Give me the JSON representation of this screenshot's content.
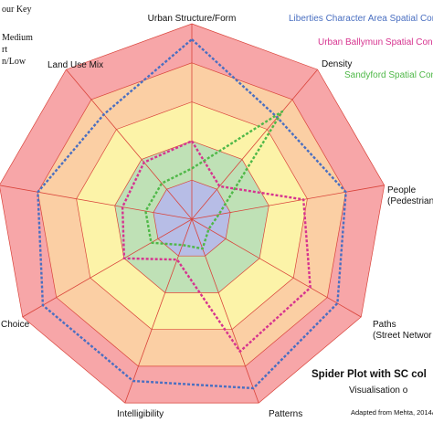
{
  "chart_data": {
    "type": "radar",
    "title": "Spider Plot with SC col",
    "subtitle": "Visualisation o",
    "source_note": "Adapted from  Mehta, 2014&",
    "colour_key": {
      "title": "our Key",
      "lines": [
        "Medium",
        "rt",
        "n/Low"
      ]
    },
    "axes": [
      "Urban Structure/Form",
      "Density",
      "People (Pedestrian",
      "Paths (Street Networ",
      "Patterns",
      "Intelligibility",
      "Choice",
      "",
      "Land Use Mix"
    ],
    "axis_label_lines": [
      [
        "Urban Structure/Form"
      ],
      [
        "Density"
      ],
      [
        "People",
        "(Pedestrian"
      ],
      [
        "Paths",
        "(Street Networ"
      ],
      [
        "Patterns"
      ],
      [
        "Intelligibility"
      ],
      [
        "Choice"
      ],
      [
        ""
      ],
      [
        "Land Use Mix"
      ]
    ],
    "scale": {
      "min": 0,
      "max": 5
    },
    "bands": [
      {
        "level": 5,
        "color": "#f7a6a8"
      },
      {
        "level": 4,
        "color": "#fbcfa4"
      },
      {
        "level": 3,
        "color": "#fcf3a8"
      },
      {
        "level": 2,
        "color": "#bfe1b6"
      },
      {
        "level": 1,
        "color": "#b7bde6"
      }
    ],
    "series": [
      {
        "name": "Liberties Character Area Spatial Com",
        "color": "#4a6fc1",
        "values": [
          4.6,
          3.4,
          4.0,
          4.3,
          4.6,
          4.4,
          4.4,
          4.0,
          3.5
        ]
      },
      {
        "name": "Urban Ballymun Spatial Con",
        "color": "#d6338f",
        "values": [
          2.0,
          1.1,
          2.9,
          3.5,
          3.6,
          1.1,
          2.0,
          1.8,
          1.9
        ]
      },
      {
        "name": "Sandyford Spatial Con",
        "color": "#4fb848",
        "values": [
          1.3,
          3.6,
          0.7,
          0.5,
          0.8,
          0.7,
          1.2,
          1.2,
          1.2
        ]
      }
    ]
  }
}
